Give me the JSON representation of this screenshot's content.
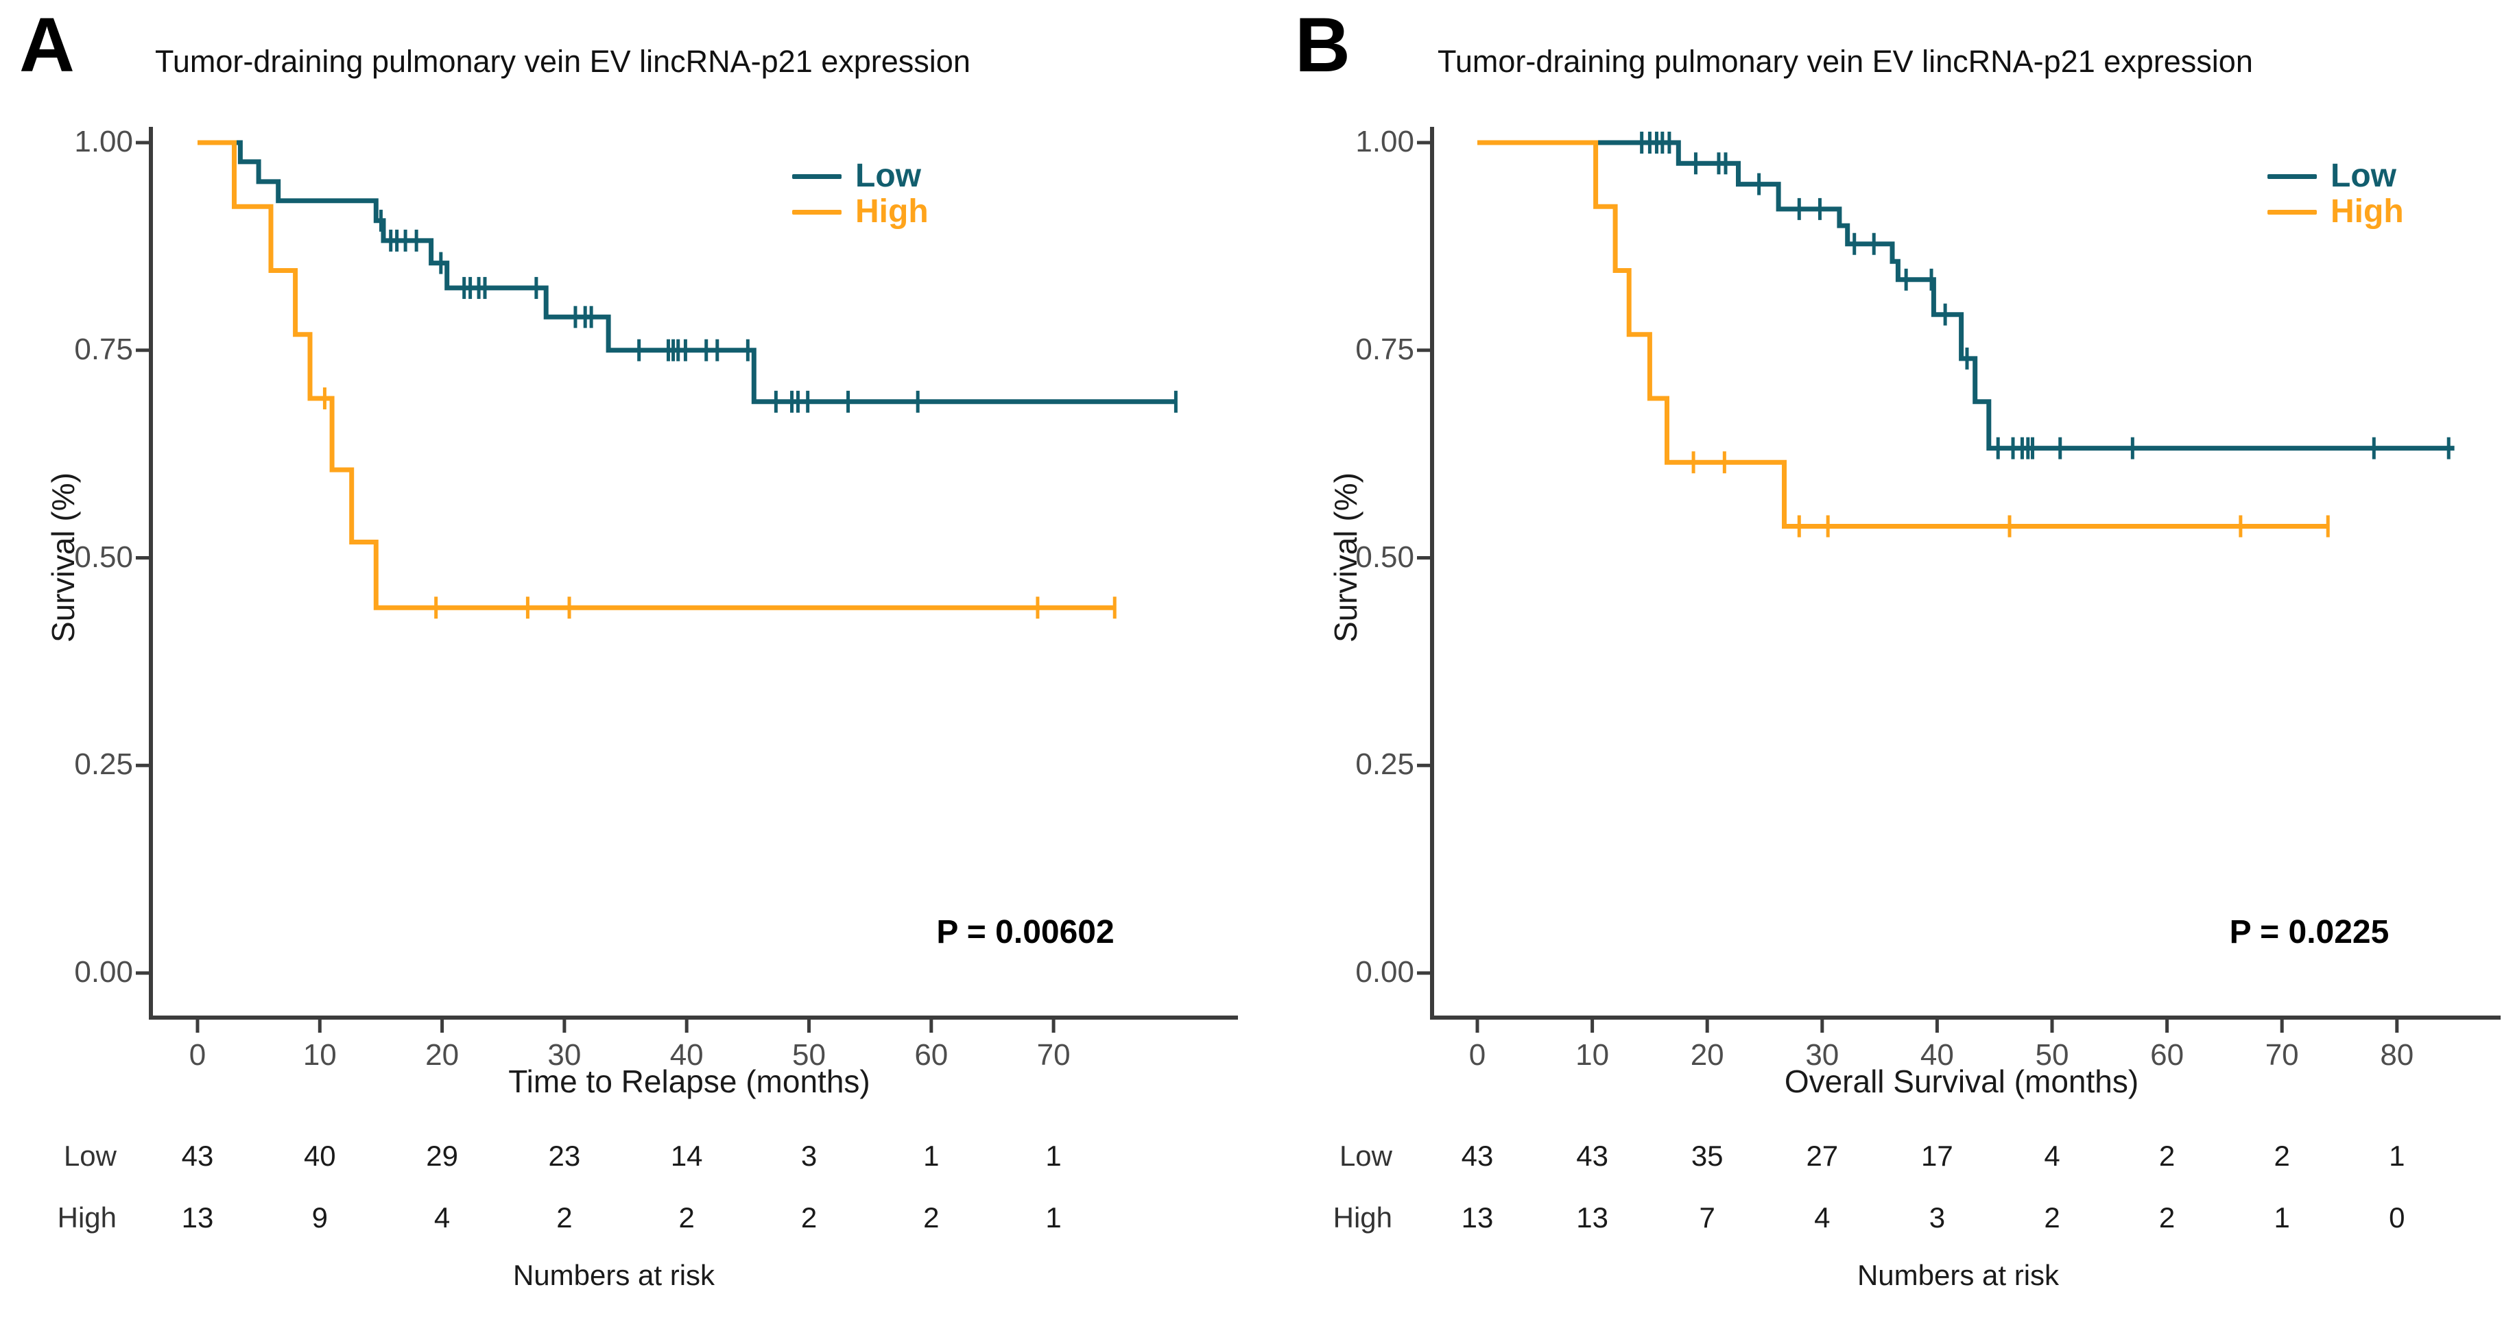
{
  "chart_data": [
    {
      "type": "line",
      "subtype": "kaplan-meier-survival",
      "panel_label": "A",
      "title": "Tumor-draining pulmonary vein EV lincRNA-p21 expression",
      "xlabel": "Time to Relapse (months)",
      "ylabel": "Survival (%)",
      "xlim": [
        0,
        80
      ],
      "ylim": [
        0,
        1
      ],
      "xticks": [
        0,
        10,
        20,
        30,
        40,
        50,
        60,
        70
      ],
      "ytick_labels": [
        "1.00",
        "0.75",
        "0.50",
        "0.25",
        "0.00"
      ],
      "yticks": [
        1.0,
        0.75,
        0.5,
        0.25,
        0.0
      ],
      "grid": false,
      "legend_position": "top-right-inside",
      "p_value_label": "P = 0.00602",
      "series": [
        {
          "name": "Low",
          "color": "#125E6E",
          "steps": [
            [
              0,
              1.0
            ],
            [
              3.5,
              0.977
            ],
            [
              5.0,
              0.953
            ],
            [
              6.6,
              0.93
            ],
            [
              14.6,
              0.906
            ],
            [
              15.2,
              0.882
            ],
            [
              19.1,
              0.855
            ],
            [
              20.4,
              0.825
            ],
            [
              28.5,
              0.79
            ],
            [
              33.6,
              0.75
            ],
            [
              45.5,
              0.688
            ]
          ],
          "end_time": 80,
          "censor_times": [
            15.0,
            15.8,
            16.3,
            17.0,
            17.9,
            19.9,
            21.8,
            22.3,
            23.0,
            23.5,
            27.7,
            30.9,
            31.7,
            32.2,
            36.1,
            38.5,
            38.9,
            39.3,
            39.9,
            41.6,
            42.5,
            45.0,
            47.3,
            48.6,
            49.1,
            49.9,
            53.2,
            58.9,
            80
          ]
        },
        {
          "name": "High",
          "color": "#FFA41B",
          "steps": [
            [
              0,
              1.0
            ],
            [
              3.0,
              0.923
            ],
            [
              6.0,
              0.846
            ],
            [
              8.0,
              0.769
            ],
            [
              9.2,
              0.692
            ],
            [
              11.0,
              0.606
            ],
            [
              12.6,
              0.519
            ],
            [
              14.6,
              0.44
            ]
          ],
          "end_time": 75,
          "censor_times": [
            10.4,
            19.5,
            27.0,
            30.4,
            68.7,
            75
          ]
        }
      ],
      "risk_table": {
        "caption": "Numbers at risk",
        "time_points": [
          0,
          10,
          20,
          30,
          40,
          50,
          60,
          70
        ],
        "rows": [
          {
            "name": "Low",
            "counts": [
              43,
              40,
              29,
              23,
              14,
              3,
              1,
              1
            ]
          },
          {
            "name": "High",
            "counts": [
              13,
              9,
              4,
              2,
              2,
              2,
              2,
              1
            ]
          }
        ]
      }
    },
    {
      "type": "line",
      "subtype": "kaplan-meier-survival",
      "panel_label": "B",
      "title": "Tumor-draining pulmonary vein EV lincRNA-p21 expression",
      "xlabel": "Overall Survival (months)",
      "ylabel": "Survival (%)",
      "xlim": [
        0,
        88
      ],
      "ylim": [
        0,
        1
      ],
      "xticks": [
        0,
        10,
        20,
        30,
        40,
        50,
        60,
        70,
        80
      ],
      "ytick_labels": [
        "1.00",
        "0.75",
        "0.50",
        "0.25",
        "0.00"
      ],
      "yticks": [
        1.0,
        0.75,
        0.5,
        0.25,
        0.0
      ],
      "grid": false,
      "legend_position": "top-right-inside",
      "p_value_label": "P = 0.0225",
      "series": [
        {
          "name": "Low",
          "color": "#125E6E",
          "steps": [
            [
              0,
              1.0
            ],
            [
              17.5,
              0.975
            ],
            [
              22.7,
              0.95
            ],
            [
              26.2,
              0.92
            ],
            [
              31.5,
              0.9
            ],
            [
              32.2,
              0.878
            ],
            [
              36.1,
              0.857
            ],
            [
              36.6,
              0.835
            ],
            [
              39.7,
              0.793
            ],
            [
              42.1,
              0.74
            ],
            [
              43.3,
              0.688
            ],
            [
              44.5,
              0.632
            ]
          ],
          "end_time": 85,
          "censor_times": [
            14.3,
            15.0,
            15.6,
            16.1,
            16.7,
            19.0,
            21.0,
            21.6,
            24.5,
            28.0,
            29.8,
            32.8,
            34.5,
            37.3,
            39.5,
            40.7,
            42.6,
            45.3,
            46.6,
            47.4,
            47.9,
            48.3,
            50.7,
            57.0,
            78.0,
            84.5
          ]
        },
        {
          "name": "High",
          "color": "#FFA41B",
          "steps": [
            [
              0,
              1.0
            ],
            [
              10.3,
              0.923
            ],
            [
              12.0,
              0.846
            ],
            [
              13.2,
              0.769
            ],
            [
              15.0,
              0.692
            ],
            [
              16.5,
              0.615
            ],
            [
              26.7,
              0.538
            ]
          ],
          "end_time": 74,
          "censor_times": [
            18.8,
            21.5,
            28.0,
            30.5,
            46.3,
            66.4,
            74
          ]
        }
      ],
      "risk_table": {
        "caption": "Numbers at risk",
        "time_points": [
          0,
          10,
          20,
          30,
          40,
          50,
          60,
          70,
          80
        ],
        "rows": [
          {
            "name": "Low",
            "counts": [
              43,
              43,
              35,
              27,
              17,
              4,
              2,
              2,
              1
            ]
          },
          {
            "name": "High",
            "counts": [
              13,
              13,
              7,
              4,
              3,
              2,
              2,
              1,
              0
            ]
          }
        ]
      }
    }
  ]
}
